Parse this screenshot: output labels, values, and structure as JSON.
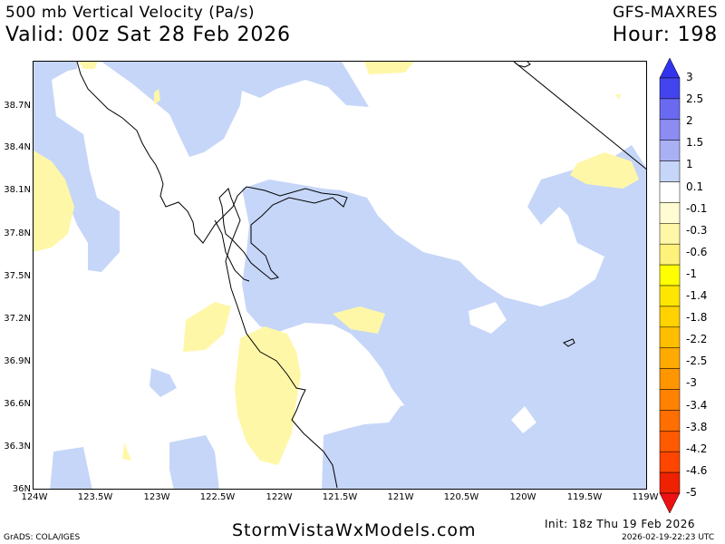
{
  "header": {
    "title": "500 mb Vertical Velocity (Pa/s)",
    "valid": "Valid: 00z Sat 28 Feb 2026",
    "model": "GFS-MAXRES",
    "hour": "Hour: 198"
  },
  "axes": {
    "y_labels": [
      "38.7N",
      "38.4N",
      "38.1N",
      "37.8N",
      "37.5N",
      "37.2N",
      "36.9N",
      "36.6N",
      "36.3N",
      "36N"
    ],
    "x_labels": [
      "124W",
      "123.5W",
      "123W",
      "122.5W",
      "122W",
      "121.5W",
      "121W",
      "120.5W",
      "120W",
      "119.5W",
      "119W"
    ]
  },
  "colorbar": {
    "labels": [
      "3",
      "2.5",
      "2",
      "1.5",
      "1",
      "0.1",
      "-0.1",
      "-0.3",
      "-0.6",
      "-1",
      "-1.4",
      "-1.8",
      "-2.2",
      "-2.5",
      "-3",
      "-3.4",
      "-3.8",
      "-4.2",
      "-4.6",
      "-5"
    ],
    "colors": [
      "#4444ee",
      "#6a6af0",
      "#8c8cf2",
      "#aab0f4",
      "#c6d6f8",
      "#ffffff",
      "#fffbd2",
      "#fff7a8",
      "#fff27a",
      "#ffff00",
      "#ffe600",
      "#ffd200",
      "#ffbe00",
      "#ffaa00",
      "#ff9600",
      "#ff8200",
      "#ff6e00",
      "#ff5a00",
      "#ff4600",
      "#ee2200"
    ],
    "top_arrow_color": "#3333ee",
    "bottom_arrow_color": "#ee1111"
  },
  "footer": {
    "credit": "GrADS: COLA/IGES",
    "site": "StormVistaWxModels.com",
    "init": "Init: 18z Thu 19 Feb 2026",
    "timestamp": "2026-02-19-22:23 UTC"
  }
}
